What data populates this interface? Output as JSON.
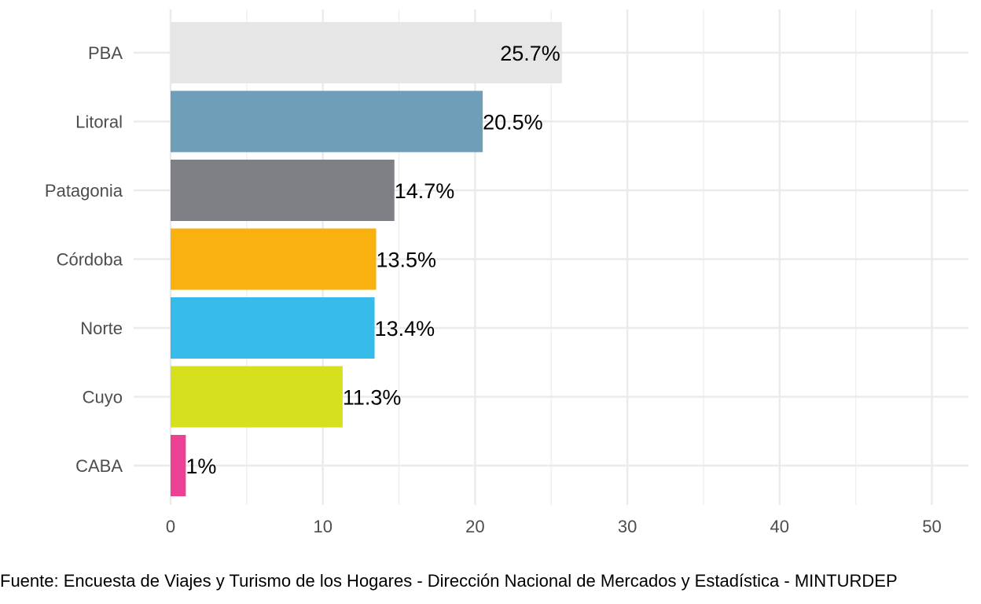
{
  "chart_data": {
    "type": "bar",
    "orientation": "horizontal",
    "categories": [
      "PBA",
      "Litoral",
      "Patagonia",
      "Córdoba",
      "Norte",
      "Cuyo",
      "CABA"
    ],
    "values": [
      25.7,
      20.5,
      14.7,
      13.5,
      13.4,
      11.3,
      1
    ],
    "labels": [
      "25.7%",
      "20.5%",
      "14.7%",
      "13.5%",
      "13.4%",
      "11.3%",
      "1%"
    ],
    "colors": [
      "#e6e6e6",
      "#6f9fb8",
      "#7f8086",
      "#f9b110",
      "#37bbeb",
      "#d6e01e",
      "#ec4195"
    ],
    "xlim": [
      0,
      52
    ],
    "xticks": [
      0,
      10,
      20,
      30,
      40,
      50
    ],
    "xtick_labels": [
      "0",
      "10",
      "20",
      "30",
      "40",
      "50"
    ],
    "grid": true,
    "title": "",
    "xlabel": "",
    "ylabel": ""
  },
  "caption": "Fuente: Encuesta de Viajes y Turismo de los Hogares - Dirección Nacional de Mercados y Estadística - MINTURDEP"
}
